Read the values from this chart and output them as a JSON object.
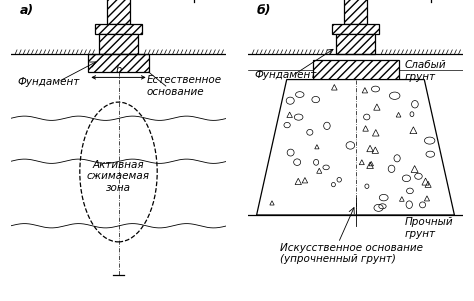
{
  "title_a": "а)",
  "title_b": "б)",
  "label_fundament_a": "Фундамент",
  "label_natural_base": "Естественное\nоснование",
  "label_active_zone": "Активная\nсжимаемая\nзона",
  "label_b": "b",
  "label_fundament_b": "Фундамент",
  "label_weak_soil": "Слабый\nгрунт",
  "label_strong_soil": "Прочный\nгрунт",
  "label_artificial_base": "Искусственное основание\n(упрочненный грунт)",
  "bg_color": "#ffffff",
  "fig_width": 4.74,
  "fig_height": 3.01
}
